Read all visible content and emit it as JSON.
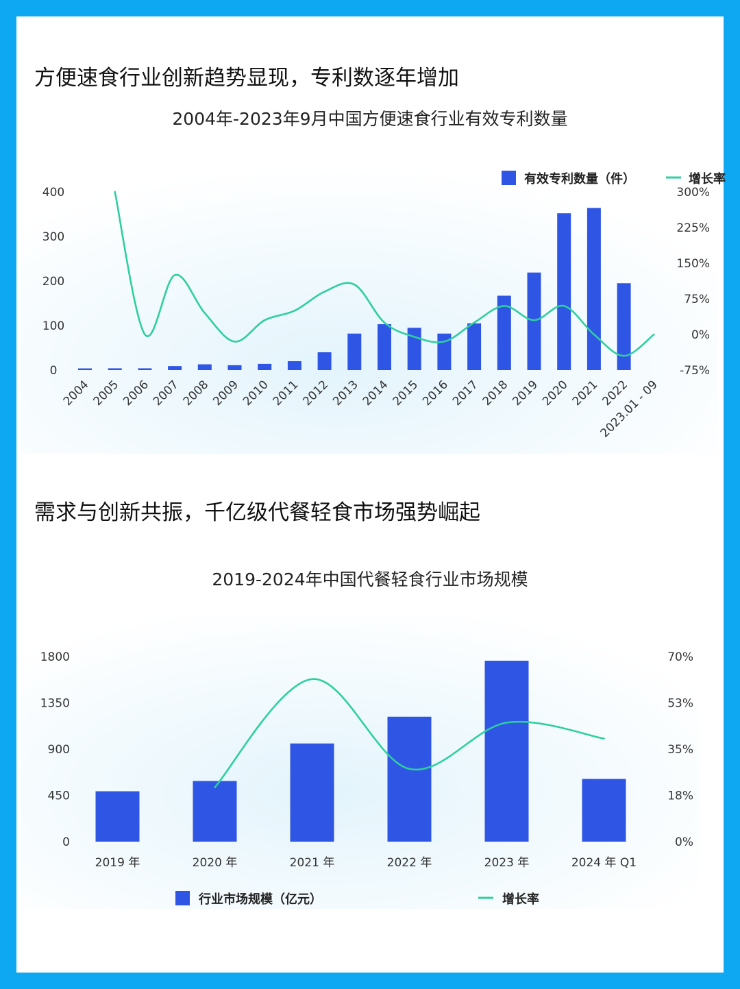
{
  "section1": {
    "heading": "方便速食行业创新趋势显现，专利数逐年增加",
    "chart_title": "2004年-2023年9月中国方便速食行业有效专利数量"
  },
  "section2": {
    "heading": "需求与创新共振，千亿级代餐轻食市场强势崛起",
    "chart_title": "2019-2024年中国代餐轻食行业市场规模"
  },
  "colors": {
    "bar": "#2f55e4",
    "line": "#2ecf9f",
    "frame": "#0ea8f2"
  },
  "chart_data": [
    {
      "type": "bar",
      "title": "2004年-2023年9月中国方便速食行业有效专利数量",
      "categories": [
        "2004",
        "2005",
        "2006",
        "2007",
        "2008",
        "2009",
        "2010",
        "2011",
        "2012",
        "2013",
        "2014",
        "2015",
        "2016",
        "2017",
        "2018",
        "2019",
        "2020",
        "2021",
        "2022",
        "2023.01 - 09"
      ],
      "series": [
        {
          "name": "有效专利数量（件）",
          "type": "bar",
          "axis": "left",
          "values": [
            1,
            4,
            4,
            9,
            13,
            11,
            14,
            20,
            40,
            82,
            103,
            95,
            82,
            105,
            167,
            219,
            352,
            364,
            195,
            0
          ]
        },
        {
          "name": "增长率",
          "type": "line",
          "axis": "right",
          "values": [
            null,
            300,
            0,
            125,
            45,
            -15,
            30,
            50,
            90,
            105,
            25,
            -5,
            -15,
            25,
            60,
            30,
            60,
            0,
            -45,
            0
          ]
        }
      ],
      "y_left": {
        "ylim": [
          0,
          400
        ],
        "ticks": [
          "400",
          "300",
          "200",
          "100",
          "0"
        ]
      },
      "y_right": {
        "ylim": [
          -75,
          300
        ],
        "ticks": [
          "300%",
          "225%",
          "150%",
          "75%",
          "0%",
          "-75%"
        ]
      },
      "legend": "top-right",
      "grid": false
    },
    {
      "type": "bar",
      "title": "2019-2024年中国代餐轻食行业市场规模",
      "categories": [
        "2019 年",
        "2020 年",
        "2021 年",
        "2022 年",
        "2023 年",
        "2024 年 Q1"
      ],
      "series": [
        {
          "name": "行业市场规模（亿元）",
          "type": "bar",
          "axis": "left",
          "values": [
            490,
            590,
            955,
            1215,
            1760,
            610
          ]
        },
        {
          "name": "增长率",
          "type": "line",
          "axis": "right",
          "values": [
            null,
            20.5,
            61.5,
            27.5,
            45,
            39
          ]
        }
      ],
      "y_left": {
        "ylim": [
          0,
          1800
        ],
        "ticks": [
          "1800",
          "1350",
          "900",
          "450",
          "0"
        ]
      },
      "y_right": {
        "ylim": [
          0,
          70
        ],
        "ticks": [
          "70%",
          "53%",
          "35%",
          "18%",
          "0%"
        ]
      },
      "legend": "bottom",
      "grid": false
    }
  ]
}
